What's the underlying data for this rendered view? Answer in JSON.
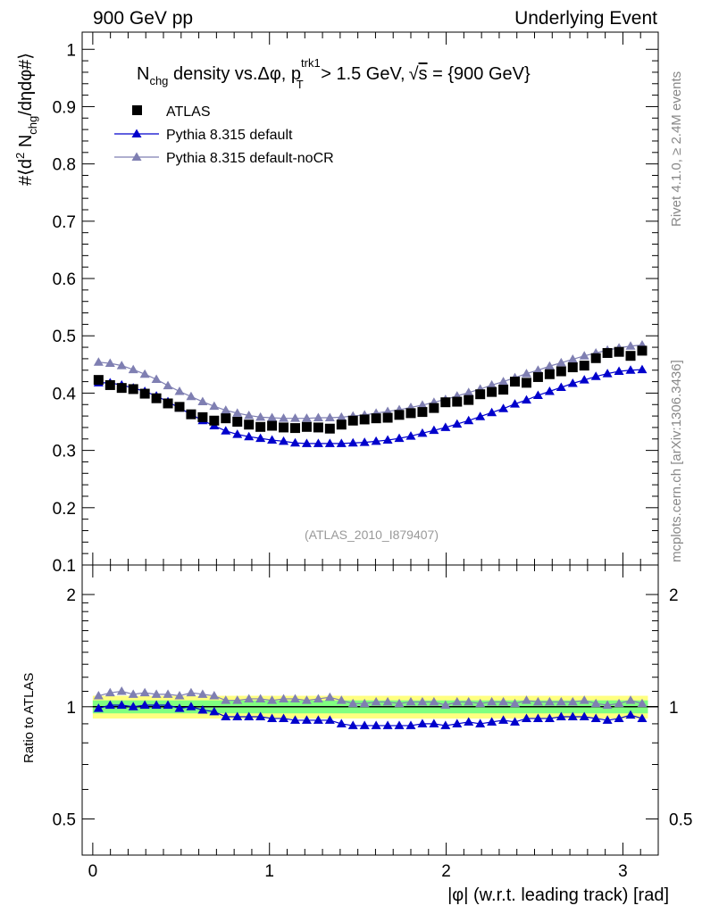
{
  "header": {
    "left": "900 GeV pp",
    "right": "Underlying Event"
  },
  "side_labels": {
    "rivet": "Rivet 4.1.0, ≥ 2.4M events",
    "mcplots": "mcplots.cern.ch [arXiv:1306.3436]"
  },
  "colors": {
    "atlas": "#000000",
    "default": "#0000cc",
    "nocr": "#7f7fb2",
    "band_inner": "#80ff80",
    "band_outer": "#ffff80"
  },
  "chart_data": [
    {
      "type": "scatter",
      "title": "N_chg density vs. Δφ, p_T^trk1 > 1.5 GeV, √s = {900 GeV}",
      "title_parts": {
        "n": "N",
        "chg": "chg",
        "mid": " density vs.Δφ, p",
        "trk1": "trk1",
        "T": "T",
        "cut": " > 1.5 GeV,",
        "sqrt": "√",
        "s": "s",
        "energy": " = {900 GeV}"
      },
      "ylabel_parts": {
        "a": "#⟨d",
        "sup2": "2",
        "b": " N",
        "chg": "chg",
        "c": "/dηdφ#⟩"
      },
      "watermark": "(ATLAS_2010_I879407)",
      "xlim": [
        -0.06,
        3.2
      ],
      "ylim": [
        0.1,
        1.03
      ],
      "yticks": [
        0.1,
        0.2,
        0.3,
        0.4,
        0.5,
        0.6,
        0.7,
        0.8,
        0.9,
        1
      ],
      "ytick_labels": [
        "0.1",
        "0.2",
        "0.3",
        "0.4",
        "0.5",
        "0.6",
        "0.7",
        "0.8",
        "0.9",
        "1"
      ],
      "legend": [
        "ATLAS",
        "Pythia 8.315 default",
        "Pythia 8.315 default-noCR"
      ],
      "x": [
        0.0327,
        0.0982,
        0.1636,
        0.2291,
        0.2945,
        0.36,
        0.4254,
        0.4909,
        0.5563,
        0.6218,
        0.6872,
        0.7527,
        0.8181,
        0.8836,
        0.949,
        1.0145,
        1.0799,
        1.1454,
        1.2108,
        1.2763,
        1.3417,
        1.4072,
        1.4726,
        1.5381,
        1.6035,
        1.669,
        1.7344,
        1.7999,
        1.8653,
        1.9308,
        1.9962,
        2.0617,
        2.1271,
        2.1926,
        2.258,
        2.3235,
        2.3889,
        2.4544,
        2.5198,
        2.5853,
        2.6507,
        2.7162,
        2.7816,
        2.8471,
        2.9125,
        2.978,
        3.0434,
        3.1089
      ],
      "series": [
        {
          "name": "ATLAS",
          "values": [
            0.423,
            0.414,
            0.409,
            0.407,
            0.399,
            0.391,
            0.382,
            0.376,
            0.363,
            0.358,
            0.352,
            0.356,
            0.35,
            0.345,
            0.341,
            0.343,
            0.34,
            0.339,
            0.341,
            0.34,
            0.338,
            0.345,
            0.352,
            0.354,
            0.356,
            0.357,
            0.362,
            0.365,
            0.367,
            0.374,
            0.384,
            0.385,
            0.388,
            0.398,
            0.402,
            0.406,
            0.42,
            0.418,
            0.428,
            0.433,
            0.438,
            0.445,
            0.448,
            0.461,
            0.47,
            0.472,
            0.465,
            0.474
          ]
        },
        {
          "name": "Pythia 8.315 default",
          "values": [
            0.418,
            0.418,
            0.414,
            0.409,
            0.403,
            0.395,
            0.385,
            0.374,
            0.363,
            0.352,
            0.343,
            0.334,
            0.328,
            0.324,
            0.321,
            0.318,
            0.316,
            0.313,
            0.312,
            0.312,
            0.312,
            0.312,
            0.313,
            0.314,
            0.316,
            0.318,
            0.321,
            0.325,
            0.33,
            0.335,
            0.34,
            0.346,
            0.352,
            0.359,
            0.366,
            0.373,
            0.381,
            0.388,
            0.396,
            0.403,
            0.41,
            0.417,
            0.423,
            0.429,
            0.434,
            0.438,
            0.44,
            0.441
          ]
        },
        {
          "name": "Pythia 8.315 default-noCR",
          "values": [
            0.454,
            0.452,
            0.448,
            0.441,
            0.433,
            0.424,
            0.413,
            0.403,
            0.394,
            0.385,
            0.377,
            0.37,
            0.365,
            0.361,
            0.358,
            0.357,
            0.356,
            0.356,
            0.356,
            0.357,
            0.357,
            0.358,
            0.36,
            0.362,
            0.365,
            0.368,
            0.371,
            0.375,
            0.379,
            0.384,
            0.389,
            0.395,
            0.401,
            0.407,
            0.414,
            0.42,
            0.427,
            0.434,
            0.44,
            0.447,
            0.453,
            0.459,
            0.465,
            0.47,
            0.475,
            0.479,
            0.482,
            0.484
          ]
        }
      ]
    },
    {
      "type": "scatter",
      "ylabel": "Ratio to ATLAS",
      "xlabel": "|φ| (w.r.t. leading track) [rad]",
      "xlim": [
        -0.06,
        3.2
      ],
      "ylim": [
        0.4,
        2.4
      ],
      "yscale": "log",
      "xticks": [
        0,
        1,
        2,
        3
      ],
      "xtick_labels": [
        "0",
        "1",
        "2",
        "3"
      ],
      "yticks": [
        0.5,
        1,
        2
      ],
      "ytick_labels": [
        "0.5",
        "1",
        "2"
      ],
      "bands": {
        "inner": [
          0.96,
          1.04
        ],
        "outer": [
          0.93,
          1.07
        ]
      },
      "series": [
        {
          "name": "Pythia 8.315 default",
          "values": [
            0.99,
            1.01,
            1.01,
            1.0,
            1.01,
            1.01,
            1.01,
            0.99,
            1.0,
            0.98,
            0.97,
            0.94,
            0.94,
            0.94,
            0.94,
            0.93,
            0.93,
            0.92,
            0.92,
            0.92,
            0.92,
            0.9,
            0.89,
            0.89,
            0.89,
            0.89,
            0.89,
            0.89,
            0.9,
            0.9,
            0.89,
            0.9,
            0.91,
            0.9,
            0.91,
            0.92,
            0.91,
            0.93,
            0.93,
            0.93,
            0.94,
            0.94,
            0.94,
            0.93,
            0.92,
            0.93,
            0.95,
            0.93
          ]
        },
        {
          "name": "Pythia 8.315 default-noCR",
          "values": [
            1.07,
            1.09,
            1.1,
            1.08,
            1.09,
            1.08,
            1.08,
            1.07,
            1.09,
            1.08,
            1.07,
            1.04,
            1.04,
            1.05,
            1.05,
            1.04,
            1.05,
            1.05,
            1.04,
            1.05,
            1.06,
            1.04,
            1.02,
            1.02,
            1.03,
            1.03,
            1.02,
            1.03,
            1.03,
            1.03,
            1.01,
            1.03,
            1.03,
            1.02,
            1.03,
            1.03,
            1.02,
            1.04,
            1.03,
            1.03,
            1.03,
            1.03,
            1.04,
            1.02,
            1.01,
            1.02,
            1.04,
            1.02
          ]
        }
      ]
    }
  ]
}
